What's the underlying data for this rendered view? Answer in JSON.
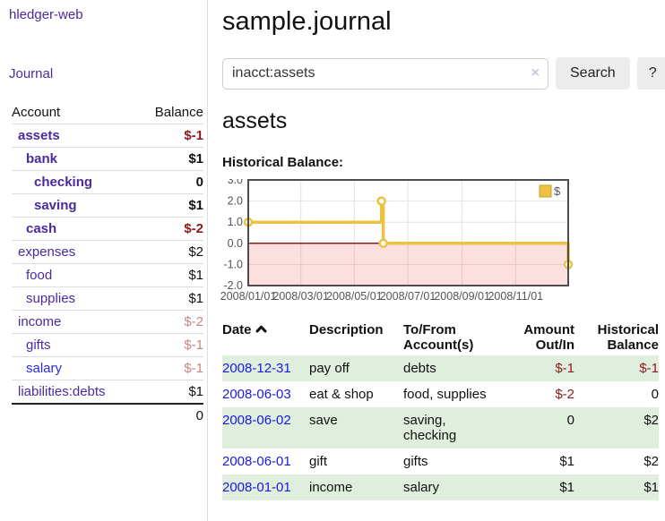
{
  "app": {
    "brand": "hledger-web",
    "nav_journal": "Journal"
  },
  "header": {
    "title": "sample.journal"
  },
  "search": {
    "value": "inacct:assets",
    "clear_icon": "×",
    "button": "Search",
    "help_button": "?"
  },
  "sidebar": {
    "table": {
      "col_account": "Account",
      "col_balance": "Balance"
    },
    "accounts": [
      {
        "name": "assets",
        "depth": 1,
        "bold": true,
        "balance": "$-1",
        "balance_style": "neg"
      },
      {
        "name": "bank",
        "depth": 2,
        "bold": true,
        "balance": "$1",
        "balance_style": "pos"
      },
      {
        "name": "checking",
        "depth": 3,
        "bold": true,
        "balance": "0",
        "balance_style": "pos"
      },
      {
        "name": "saving",
        "depth": 3,
        "bold": true,
        "balance": "$1",
        "balance_style": "pos"
      },
      {
        "name": "cash",
        "depth": 2,
        "bold": true,
        "balance": "$-2",
        "balance_style": "neg"
      },
      {
        "name": "expenses",
        "depth": 1,
        "bold": false,
        "balance": "$2",
        "balance_style": "pos"
      },
      {
        "name": "food",
        "depth": 2,
        "bold": false,
        "balance": "$1",
        "balance_style": "pos"
      },
      {
        "name": "supplies",
        "depth": 2,
        "bold": false,
        "balance": "$1",
        "balance_style": "pos"
      },
      {
        "name": "income",
        "depth": 1,
        "bold": false,
        "balance": "$-2",
        "balance_style": "neg-light"
      },
      {
        "name": "gifts",
        "depth": 2,
        "bold": false,
        "balance": "$-1",
        "balance_style": "neg-light"
      },
      {
        "name": "salary",
        "depth": 2,
        "bold": false,
        "link_style": "blue",
        "balance": "$-1",
        "balance_style": "neg-light"
      },
      {
        "name": "liabilities:debts",
        "depth": 1,
        "bold": false,
        "balance": "$1",
        "balance_style": "pos"
      }
    ],
    "total": "0"
  },
  "account_page": {
    "heading": "assets",
    "chart_label": "Historical Balance:"
  },
  "chart_data": {
    "type": "line",
    "title": "Historical Balance",
    "step": true,
    "series": [
      {
        "name": "$",
        "color": "#edc240",
        "points": [
          [
            "2008-01-01",
            1
          ],
          [
            "2008-06-01",
            2
          ],
          [
            "2008-06-03",
            0
          ],
          [
            "2008-12-31",
            -1
          ]
        ]
      }
    ],
    "x_ticks": [
      "2008/01/01",
      "2008/03/01",
      "2008/05/01",
      "2008/07/01",
      "2008/09/01",
      "2008/11/01"
    ],
    "y_ticks": [
      3.0,
      2.0,
      1.0,
      0.0,
      -1.0,
      -2.0
    ],
    "xlim": [
      "2008-01-01",
      "2008-12-31"
    ],
    "ylim": [
      -2,
      3
    ],
    "grid": true,
    "legend_position": "top-right",
    "negative_region_color": "#f9d8d8",
    "zero_line_color": "#8b1a1a"
  },
  "register": {
    "columns": [
      {
        "label": "Date",
        "sort": "asc"
      },
      {
        "label": "Description"
      },
      {
        "label": "To/From Account(s)"
      },
      {
        "label": "Amount Out/In",
        "align": "right"
      },
      {
        "label": "Historical Balance",
        "align": "right"
      }
    ],
    "rows": [
      {
        "date": "2008-12-31",
        "description": "pay off",
        "accounts": "debts",
        "amount": "$-1",
        "amount_style": "neg",
        "balance": "$-1",
        "balance_style": "neg"
      },
      {
        "date": "2008-06-03",
        "description": "eat & shop",
        "accounts": "food, supplies",
        "amount": "$-2",
        "amount_style": "neg",
        "balance": "0",
        "balance_style": "pos"
      },
      {
        "date": "2008-06-02",
        "description": "save",
        "accounts": "saving, checking",
        "amount": "0",
        "amount_style": "pos",
        "balance": "$2",
        "balance_style": "pos"
      },
      {
        "date": "2008-06-01",
        "description": "gift",
        "accounts": "gifts",
        "amount": "$1",
        "amount_style": "pos",
        "balance": "$2",
        "balance_style": "pos"
      },
      {
        "date": "2008-01-01",
        "description": "income",
        "accounts": "salary",
        "amount": "$1",
        "amount_style": "pos",
        "balance": "$1",
        "balance_style": "pos"
      }
    ]
  },
  "colors": {
    "purple_link": "#4b2a9e",
    "blue_link": "#1a1ae0",
    "negative_dark": "#8b1a1a",
    "negative_light": "#c58585",
    "row_stripe_green": "#dfeedd",
    "chart_series_yellow": "#edc240",
    "chart_border": "#4d4d4d",
    "divider": "#dddddd"
  }
}
